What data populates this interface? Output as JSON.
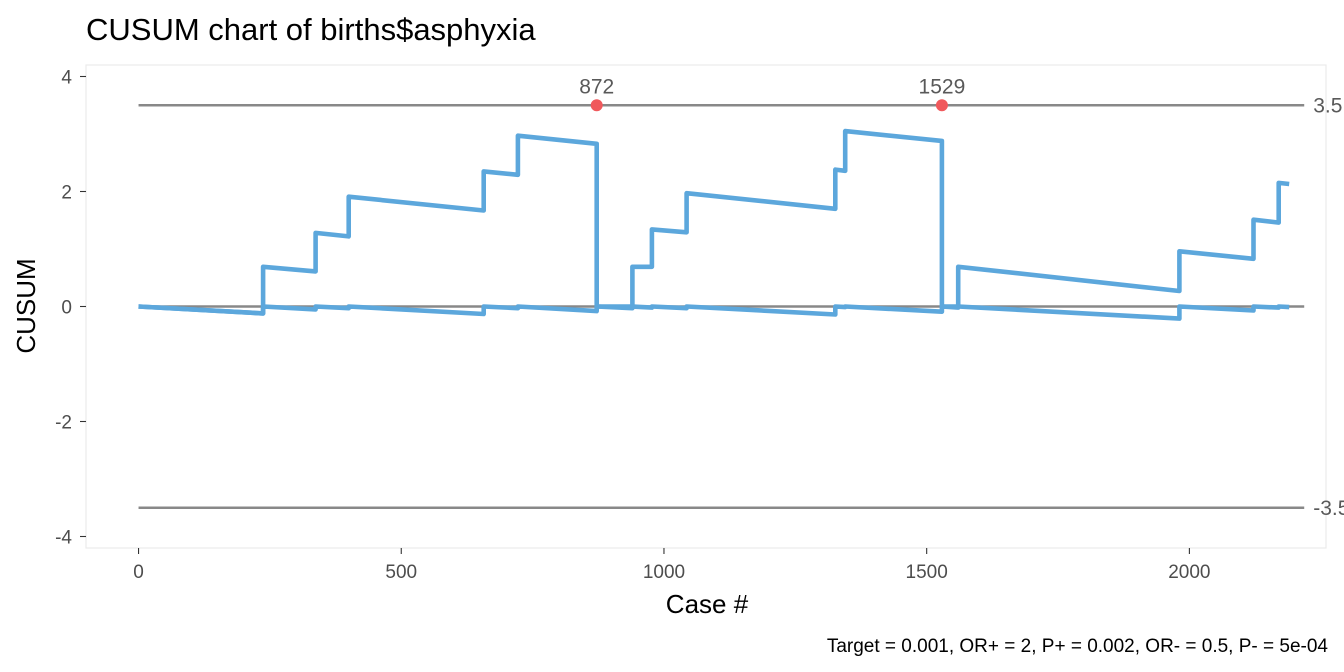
{
  "chart_data": {
    "type": "line",
    "title": "CUSUM chart of births$asphyxia",
    "xlabel": "Case #",
    "ylabel": "CUSUM",
    "caption": "Target = 0.001, OR+ = 2, P+ = 0.002, OR- = 0.5, P- = 5e-04",
    "xlim": [
      -100,
      2260
    ],
    "ylim": [
      -4.2,
      4.2
    ],
    "x_ticks": [
      0,
      500,
      1000,
      1500,
      2000
    ],
    "x_tick_labels": [
      "0",
      "500",
      "1000",
      "1500",
      "2000"
    ],
    "y_ticks": [
      -4,
      -2,
      0,
      2,
      4
    ],
    "y_tick_labels": [
      "-4",
      "-2",
      "0",
      "2",
      "4"
    ],
    "grid": false,
    "colors": {
      "series": "#5ca7dc",
      "limit": "#888888",
      "signal": "#f0595c",
      "panel_border": "#ebebeb"
    },
    "limits": [
      {
        "value": 3.5,
        "label": "3.5"
      },
      {
        "value": -3.5,
        "label": "-3.5"
      },
      {
        "value": 0,
        "label": ""
      }
    ],
    "series": [
      {
        "x": [
          0,
          237,
          237,
          337,
          337,
          400,
          400,
          657,
          657,
          722,
          722,
          872,
          872,
          940,
          940,
          977,
          977,
          1043,
          1043,
          1326,
          1326,
          1345,
          1345,
          1529,
          1529,
          1560,
          1560,
          1981,
          1981,
          2122,
          2122,
          2170,
          2170,
          2190
        ],
        "y": [
          0,
          -0.12,
          0.69,
          0.61,
          1.28,
          1.22,
          1.91,
          1.67,
          2.35,
          2.29,
          2.97,
          2.83,
          0,
          0,
          0.69,
          0.69,
          1.34,
          1.29,
          1.97,
          1.7,
          2.38,
          2.36,
          3.05,
          2.88,
          0,
          0,
          0.69,
          0.27,
          0.96,
          0.83,
          1.51,
          1.46,
          2.15,
          2.13
        ]
      },
      {
        "x": [
          0,
          237,
          237,
          337,
          337,
          400,
          400,
          657,
          657,
          722,
          722,
          872,
          872,
          940,
          940,
          977,
          977,
          1043,
          1043,
          1326,
          1326,
          1345,
          1345,
          1529,
          1529,
          1560,
          1560,
          1981,
          1981,
          2122,
          2122,
          2170,
          2170,
          2190
        ],
        "y": [
          0,
          -0.12,
          0,
          -0.05,
          0,
          -0.03,
          0,
          -0.13,
          0,
          -0.03,
          0,
          -0.08,
          0,
          -0.03,
          0,
          -0.02,
          0,
          -0.03,
          0,
          -0.14,
          0,
          -0.01,
          0,
          -0.09,
          0,
          -0.02,
          0,
          -0.21,
          0,
          -0.07,
          0,
          -0.02,
          0,
          -0.01
        ]
      }
    ],
    "signals": [
      {
        "x": 872,
        "y": 3.5,
        "label": "872"
      },
      {
        "x": 1529,
        "y": 3.5,
        "label": "1529"
      }
    ]
  }
}
